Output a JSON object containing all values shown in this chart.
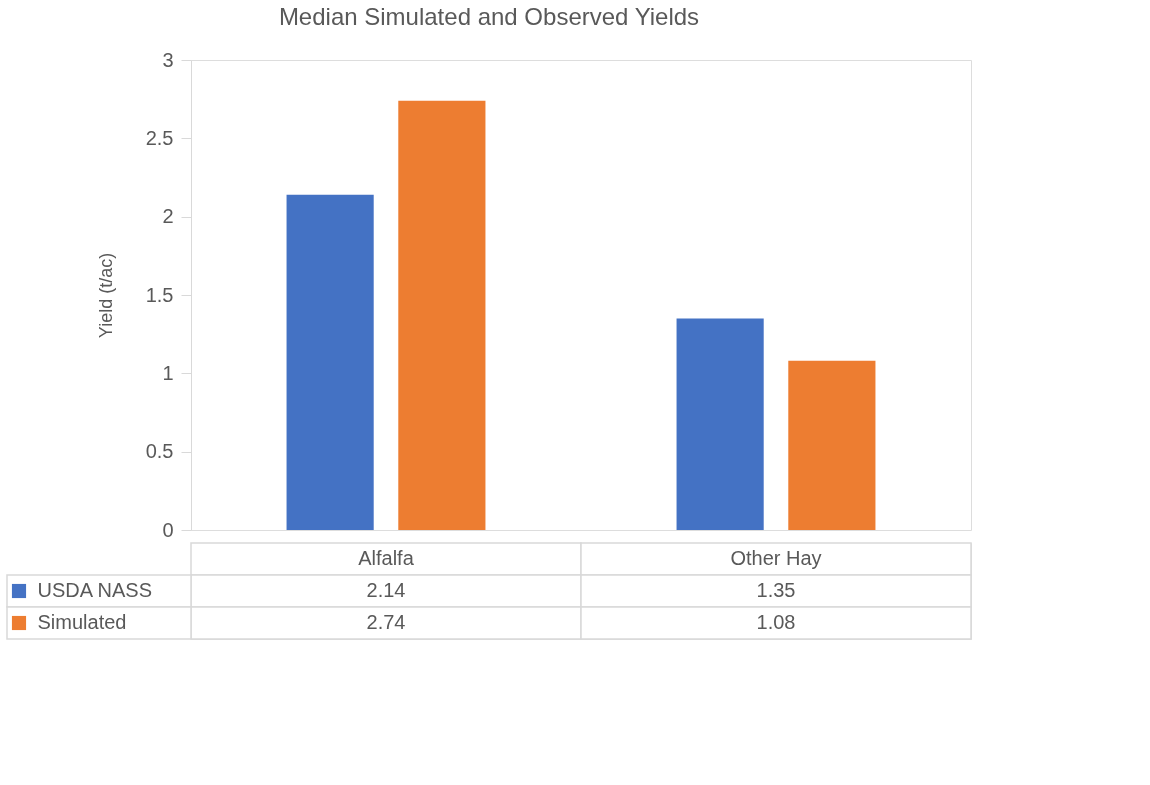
{
  "chart_data": {
    "type": "bar",
    "title": "Median Simulated and Observed Yields",
    "ylabel": "Yield (t/ac)",
    "categories": [
      "Alfalfa",
      "Other Hay"
    ],
    "series": [
      {
        "name": "USDA NASS",
        "color": "#4472c4",
        "values": [
          2.14,
          1.35
        ]
      },
      {
        "name": "Simulated",
        "color": "#ed7d31",
        "values": [
          2.74,
          1.08
        ]
      }
    ],
    "ylim": [
      0,
      3
    ],
    "yticks": [
      0,
      0.5,
      1,
      1.5,
      2,
      2.5,
      3
    ],
    "grid": false,
    "legend": "bottom",
    "data_labels": true
  }
}
